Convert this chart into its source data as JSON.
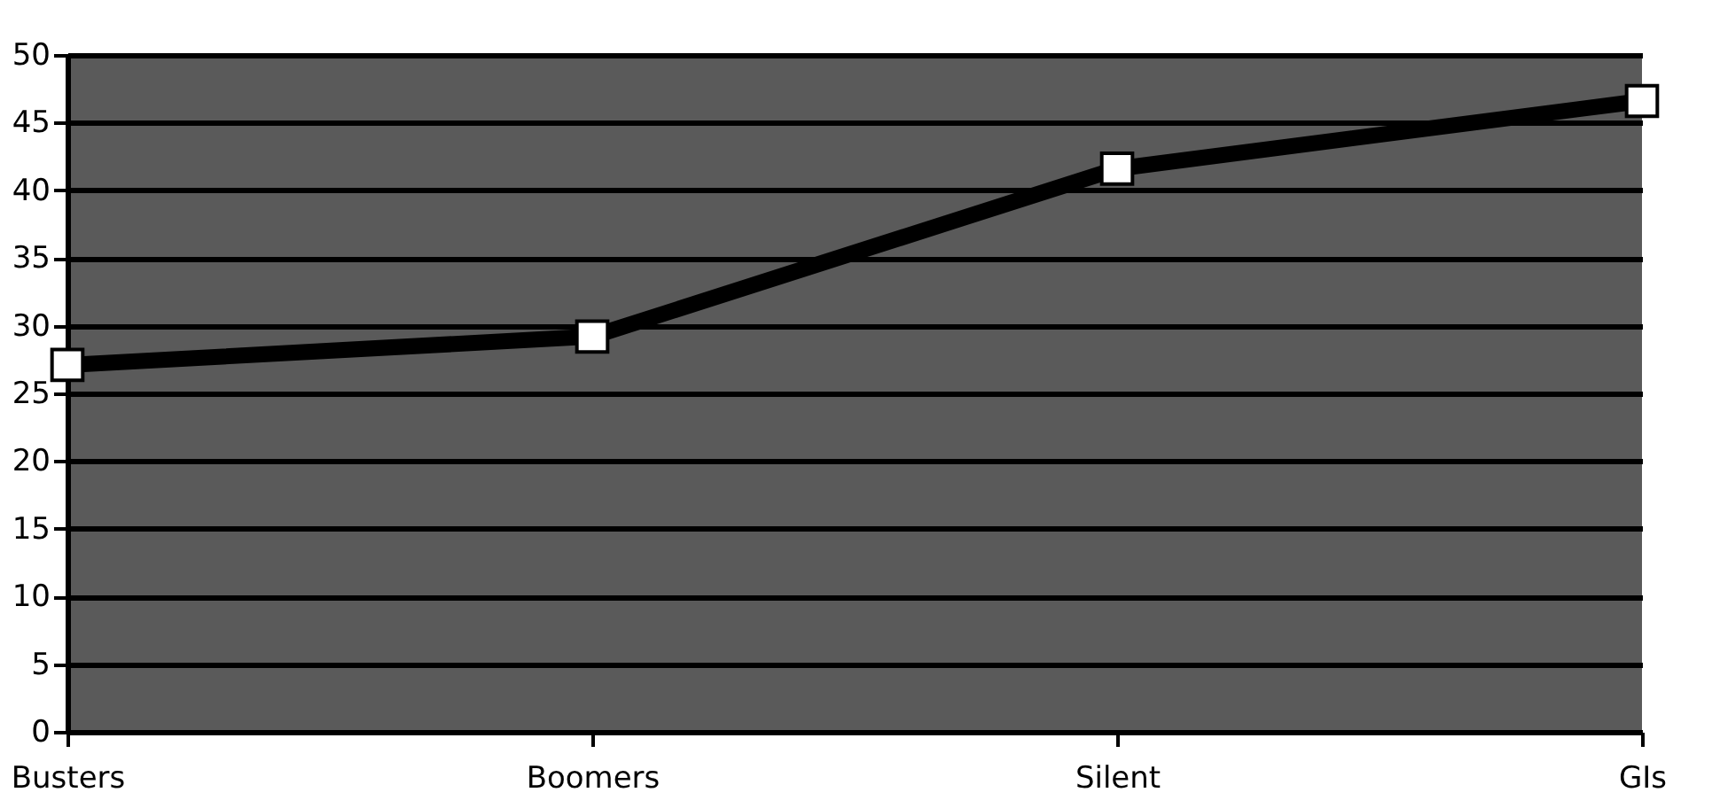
{
  "chart_data": {
    "type": "line",
    "categories": [
      "Busters",
      "Boomers",
      "Silent",
      "GIs"
    ],
    "series": [
      {
        "color": "#000000",
        "values": [
          27.1,
          29.2,
          41.6,
          46.6
        ]
      }
    ],
    "ylim": [
      0,
      50
    ],
    "yticks": [
      0,
      5,
      10,
      15,
      20,
      25,
      30,
      35,
      40,
      45,
      50
    ],
    "grid": "y",
    "marker": "square",
    "line_style": "solid"
  }
}
